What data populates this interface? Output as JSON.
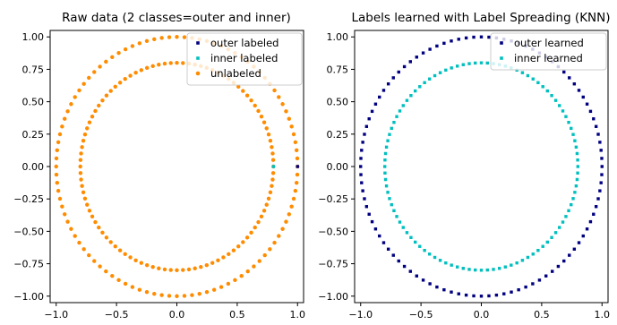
{
  "chart_data": [
    {
      "type": "scatter",
      "title": "Raw data (2 classes=outer and inner)",
      "xlabel": "",
      "ylabel": "",
      "xlim": [
        -1.05,
        1.05
      ],
      "ylim": [
        -1.05,
        1.05
      ],
      "xticks": [
        -1.0,
        -0.5,
        0.0,
        0.5,
        1.0
      ],
      "xtick_labels": [
        "−1.0",
        "−0.5",
        "0.0",
        "0.5",
        "1.0"
      ],
      "yticks": [
        1.0,
        0.75,
        0.5,
        0.25,
        0.0,
        -0.25,
        -0.5,
        -0.75,
        -1.0
      ],
      "ytick_labels": [
        "1.00",
        "0.75",
        "0.50",
        "0.25",
        "0.00",
        "−0.25",
        "−0.50",
        "−0.75",
        "−1.00"
      ],
      "grid": false,
      "legend_position": "top-right",
      "series": [
        {
          "name": "outer labeled",
          "color": "#000080",
          "marker": "square",
          "points": [
            [
              1.0,
              0.0
            ]
          ]
        },
        {
          "name": "inner labeled",
          "color": "#00bfbf",
          "marker": "square",
          "points": [
            [
              0.8,
              0.0
            ]
          ]
        },
        {
          "name": "unlabeled",
          "color": "#ff8c00",
          "marker": "circle",
          "circles": [
            {
              "radius": 1.0,
              "count": 100
            },
            {
              "radius": 0.8,
              "count": 100
            }
          ]
        }
      ]
    },
    {
      "type": "scatter",
      "title": "Labels learned with Label Spreading (KNN)",
      "xlabel": "",
      "ylabel": "",
      "xlim": [
        -1.05,
        1.05
      ],
      "ylim": [
        -1.05,
        1.05
      ],
      "xticks": [
        -1.0,
        -0.5,
        0.0,
        0.5,
        1.0
      ],
      "xtick_labels": [
        "−1.0",
        "−0.5",
        "0.0",
        "0.5",
        "1.0"
      ],
      "yticks": [
        1.0,
        0.75,
        0.5,
        0.25,
        0.0,
        -0.25,
        -0.5,
        -0.75,
        -1.0
      ],
      "ytick_labels": [
        "1.00",
        "0.75",
        "0.50",
        "0.25",
        "0.00",
        "−0.25",
        "−0.50",
        "−0.75",
        "−1.00"
      ],
      "grid": false,
      "legend_position": "top-right",
      "series": [
        {
          "name": "outer learned",
          "color": "#000080",
          "marker": "square",
          "circles": [
            {
              "radius": 1.0,
              "count": 100
            }
          ]
        },
        {
          "name": "inner learned",
          "color": "#00bfbf",
          "marker": "square",
          "circles": [
            {
              "radius": 0.8,
              "count": 100
            }
          ]
        }
      ]
    }
  ]
}
